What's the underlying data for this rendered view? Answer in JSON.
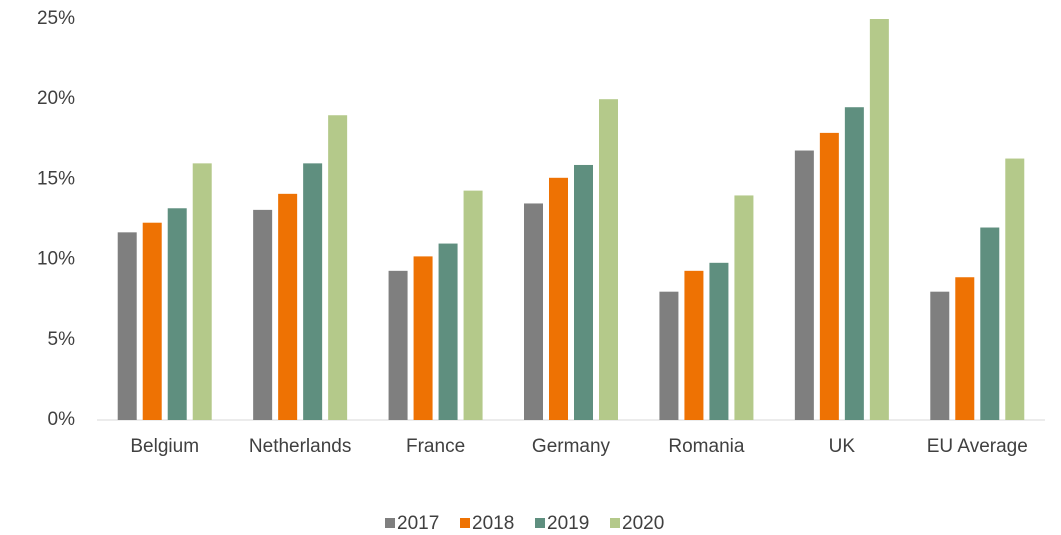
{
  "chart_data": {
    "type": "bar",
    "categories": [
      "Belgium",
      "Netherlands",
      "France",
      "Germany",
      "Romania",
      "UK",
      "EU Average"
    ],
    "series": [
      {
        "name": "2017",
        "color": "#7f7f7f",
        "values": [
          11.7,
          13.1,
          9.3,
          13.5,
          8.0,
          16.8,
          8.0
        ]
      },
      {
        "name": "2018",
        "color": "#ee7203",
        "values": [
          12.3,
          14.1,
          10.2,
          15.1,
          9.3,
          17.9,
          8.9
        ]
      },
      {
        "name": "2019",
        "color": "#5f8f7f",
        "values": [
          13.2,
          16.0,
          11.0,
          15.9,
          9.8,
          19.5,
          12.0
        ]
      },
      {
        "name": "2020",
        "color": "#b4c98a",
        "values": [
          16.0,
          19.0,
          14.3,
          20.0,
          14.0,
          25.0,
          16.3
        ]
      }
    ],
    "ylim": [
      0,
      25
    ],
    "yticks": [
      {
        "value": 0,
        "label": "0%"
      },
      {
        "value": 5,
        "label": "5%"
      },
      {
        "value": 10,
        "label": "10%"
      },
      {
        "value": 15,
        "label": "15%"
      },
      {
        "value": 20,
        "label": "20%"
      },
      {
        "value": 25,
        "label": "25%"
      }
    ],
    "grid": false,
    "legend": "bottom"
  }
}
